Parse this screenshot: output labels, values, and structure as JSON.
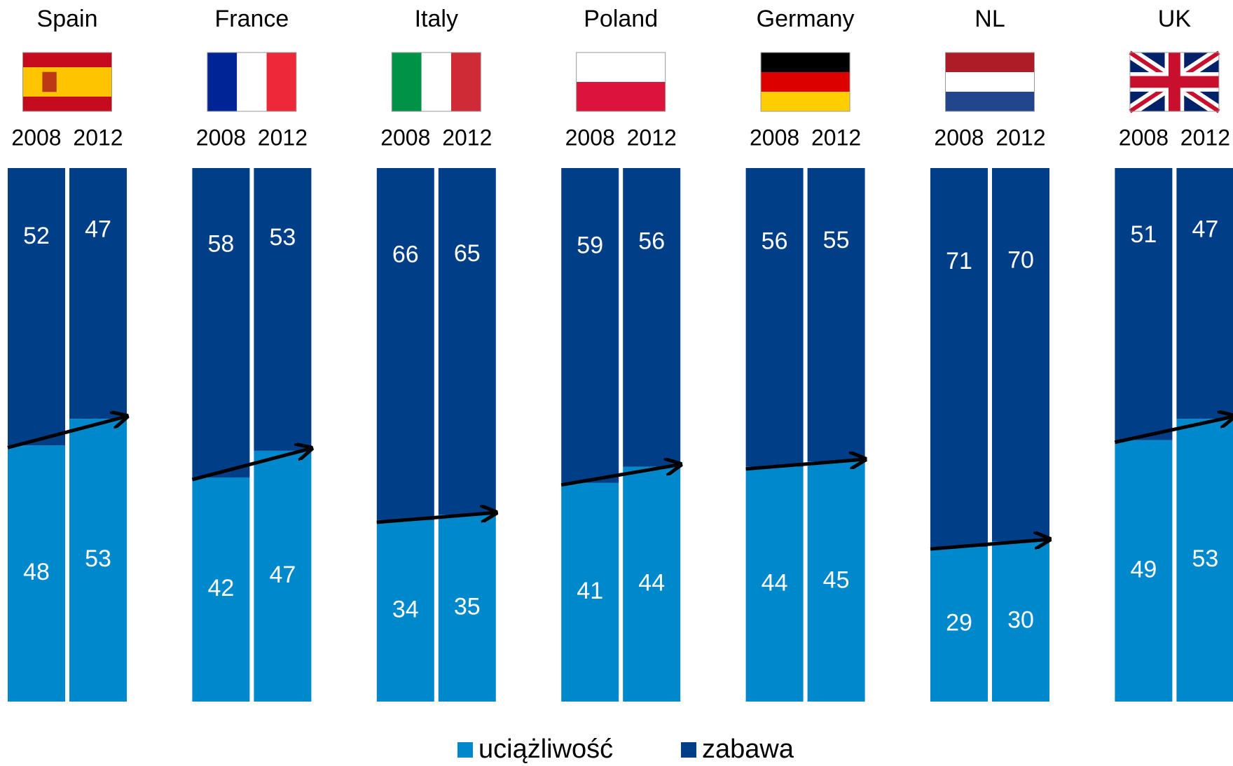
{
  "chart_data": {
    "type": "bar",
    "stacked": true,
    "groups": [
      "Spain",
      "France",
      "Italy",
      "Poland",
      "Germany",
      "NL",
      "UK"
    ],
    "categories": [
      "2008",
      "2012"
    ],
    "ylim": [
      0,
      100
    ],
    "series": [
      {
        "name": "uciążliwość",
        "color": "#0088cc",
        "values": [
          [
            48,
            53
          ],
          [
            42,
            47
          ],
          [
            34,
            35
          ],
          [
            41,
            44
          ],
          [
            44,
            45
          ],
          [
            29,
            30
          ],
          [
            49,
            53
          ]
        ]
      },
      {
        "name": "zabawa",
        "color": "#003f87",
        "values": [
          [
            52,
            47
          ],
          [
            58,
            53
          ],
          [
            66,
            65
          ],
          [
            59,
            56
          ],
          [
            56,
            55
          ],
          [
            71,
            70
          ],
          [
            51,
            47
          ]
        ]
      }
    ]
  }
}
